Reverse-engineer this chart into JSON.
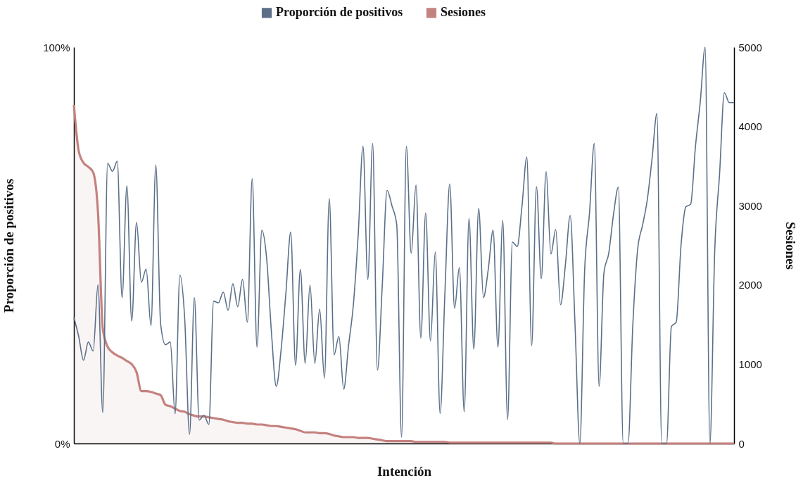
{
  "chart_data": {
    "type": "line",
    "xlabel": "Intención",
    "ylabel": "Proporción de positivos",
    "y2label": "Sesiones",
    "categories": [
      null,
      null,
      null,
      null,
      null,
      null,
      null,
      null,
      null,
      null,
      null,
      null,
      null,
      null,
      null,
      null,
      null,
      null,
      null,
      null,
      null,
      null,
      null,
      null,
      null,
      null,
      null,
      null,
      null,
      null,
      null,
      null,
      null,
      null,
      null,
      null,
      null,
      null,
      null,
      null,
      null,
      null,
      null,
      null,
      null,
      null,
      null,
      null,
      null,
      null,
      null,
      null,
      null,
      null,
      null,
      null,
      null,
      null,
      null,
      null,
      null,
      null,
      null,
      null,
      null,
      null,
      null,
      null,
      null,
      null,
      null,
      null,
      null,
      null,
      null,
      null,
      null,
      null,
      null,
      null,
      null,
      null,
      null,
      null,
      null,
      null,
      null,
      null,
      null,
      null,
      null,
      null,
      null,
      null,
      null,
      null,
      null,
      null,
      null,
      null,
      null,
      null,
      null,
      null,
      null,
      null,
      null,
      null,
      null,
      null,
      null,
      null,
      null,
      null,
      null,
      null,
      null,
      null,
      null,
      null,
      null,
      null,
      null,
      null,
      null,
      null,
      null,
      null,
      null,
      null,
      null,
      null,
      null,
      null,
      null,
      null,
      null,
      null
    ],
    "series": [
      {
        "name": "Proporción de positivos",
        "color": "#5b7088",
        "values": [
          31.8,
          27.0,
          21.0,
          25.6,
          23.3,
          40.1,
          7.8,
          70.7,
          68.7,
          71.2,
          36.8,
          65.0,
          30.9,
          55.8,
          40.7,
          44.0,
          29.7,
          70.3,
          30.2,
          24.9,
          25.6,
          7.5,
          42.5,
          31.4,
          2.3,
          36.8,
          5.9,
          7.1,
          4.8,
          35.9,
          35.5,
          38.2,
          33.6,
          40.3,
          34.5,
          41.4,
          30.6,
          66.8,
          24.3,
          53.8,
          46.7,
          28,
          14.4,
          23.6,
          38,
          53.3,
          19.7,
          43.9,
          20.2,
          40.0,
          20.2,
          33.9,
          16.5,
          61.8,
          22.4,
          27.0,
          13.7,
          24.7,
          35,
          52.6,
          75.0,
          41.4,
          75.7,
          18.5,
          40,
          63.9,
          60,
          55.2,
          1.6,
          75.0,
          48.0,
          65.2,
          26.6,
          58.1,
          25.9,
          48.3,
          7.6,
          38,
          65.5,
          34.1,
          44.4,
          8.0,
          56.8,
          23.8,
          59.3,
          36.8,
          44,
          53.8,
          24.3,
          56.3,
          6.0,
          50.8,
          49.7,
          60,
          72.3,
          24.7,
          64.8,
          41.6,
          68.6,
          47.8,
          54.0,
          35.0,
          45,
          57.5,
          30,
          0,
          43.7,
          58,
          75.7,
          14.4,
          43.0,
          48,
          57.9,
          64.7,
          0,
          0,
          30,
          49.0,
          55,
          61.5,
          72,
          83.3,
          0,
          0,
          29.5,
          30.6,
          50,
          59.7,
          60.4,
          75,
          86.3,
          100,
          0,
          48.8,
          68,
          88.5,
          86.0,
          86.0
        ]
      },
      {
        "name": "Sesiones",
        "type": "area",
        "axis": "y2",
        "color": "#c4827f",
        "values": [
          4270,
          3690,
          3540,
          3490,
          3420,
          2920,
          1450,
          1220,
          1150,
          1110,
          1080,
          1040,
          1000,
          900,
          660,
          660,
          650,
          630,
          610,
          490,
          470,
          440,
          410,
          400,
          370,
          350,
          340,
          340,
          330,
          320,
          310,
          300,
          280,
          270,
          260,
          260,
          250,
          250,
          240,
          240,
          230,
          220,
          220,
          210,
          200,
          190,
          180,
          160,
          140,
          140,
          140,
          130,
          130,
          120,
          100,
          90,
          80,
          80,
          80,
          70,
          70,
          70,
          60,
          50,
          40,
          30,
          30,
          30,
          30,
          30,
          30,
          20,
          20,
          20,
          20,
          20,
          20,
          20,
          10,
          10,
          10,
          10,
          10,
          10,
          10,
          10,
          10,
          10,
          10,
          10,
          10,
          10,
          10,
          10,
          10,
          10,
          10,
          10,
          10,
          10,
          0,
          0,
          0,
          0,
          0,
          0,
          0,
          0,
          0,
          0,
          0,
          0,
          0,
          0,
          0,
          0,
          0,
          0,
          0,
          0,
          0,
          0,
          0,
          0,
          0,
          0,
          0,
          0,
          0,
          0,
          0,
          0,
          0,
          0,
          0,
          0,
          0,
          0
        ]
      }
    ],
    "ylim": [
      0,
      100
    ],
    "yticks": [
      {
        "value": 0,
        "label": "0%"
      },
      {
        "value": 100,
        "label": "100%"
      }
    ],
    "y2lim": [
      0,
      5000
    ],
    "y2ticks": [
      0,
      1000,
      2000,
      3000,
      4000,
      5000
    ],
    "grid": false,
    "legend": "top"
  }
}
